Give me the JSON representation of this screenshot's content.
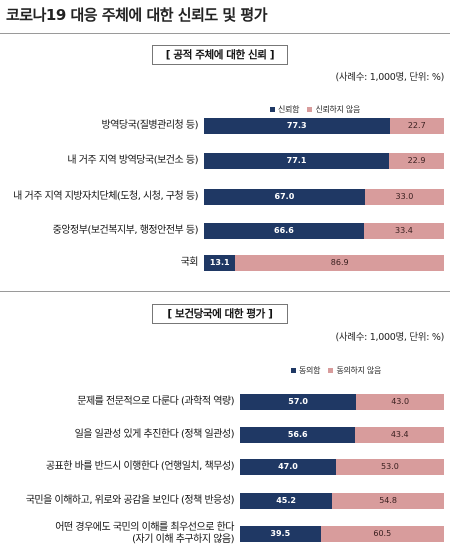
{
  "title": "코로나19 대응 주체에 대한 신뢰도 및 평가",
  "colors": {
    "positive": "#1f3864",
    "negative": "#d89c9c"
  },
  "chart_data": [
    {
      "type": "bar",
      "orientation": "horizontal-stacked-100",
      "section_title": "[ 공적 주체에 대한 신뢰 ]",
      "note": "(사례수: 1,000명, 단위: %)",
      "categories": [
        [
          "방역당국(질병관리청 등)"
        ],
        [
          "내 거주 지역 방역당국(보건소 등)"
        ],
        [
          "내 거주 지역 지방자치단체(도청, 시청, 구청 등)"
        ],
        [
          "중앙정부(보건복지부, 행정안전부 등)"
        ],
        [
          "국회"
        ]
      ],
      "series": [
        {
          "name": "신뢰함",
          "values": [
            77.3,
            77.1,
            67.0,
            66.6,
            13.1
          ]
        },
        {
          "name": "신뢰하지 않음",
          "values": [
            22.7,
            22.9,
            33.0,
            33.4,
            86.9
          ]
        }
      ],
      "xlim": [
        0,
        100
      ],
      "legend": "top-right"
    },
    {
      "type": "bar",
      "orientation": "horizontal-stacked-100",
      "section_title": "[ 보건당국에 대한 평가 ]",
      "note": "(사례수: 1,000명, 단위: %)",
      "categories": [
        [
          "문제를 전문적으로 다룬다 (과학적 역량)"
        ],
        [
          "일을 일관성 있게 추진한다 (정책 일관성)"
        ],
        [
          "공표한 바를 반드시 이행한다 (언행일치, 책무성)"
        ],
        [
          "국민을 이해하고, 위로와 공감을 보인다 (정책 반응성)"
        ],
        [
          "어떤 경우에도 국민의 이해를 최우선으로 한다",
          "(자기 이해 추구하지 않음)"
        ]
      ],
      "series": [
        {
          "name": "동의함",
          "values": [
            57.0,
            56.6,
            47.0,
            45.2,
            39.5
          ]
        },
        {
          "name": "동의하지 않음",
          "values": [
            43.0,
            43.4,
            53.0,
            54.8,
            60.5
          ]
        }
      ],
      "xlim": [
        0,
        100
      ],
      "legend": "top-right"
    }
  ]
}
